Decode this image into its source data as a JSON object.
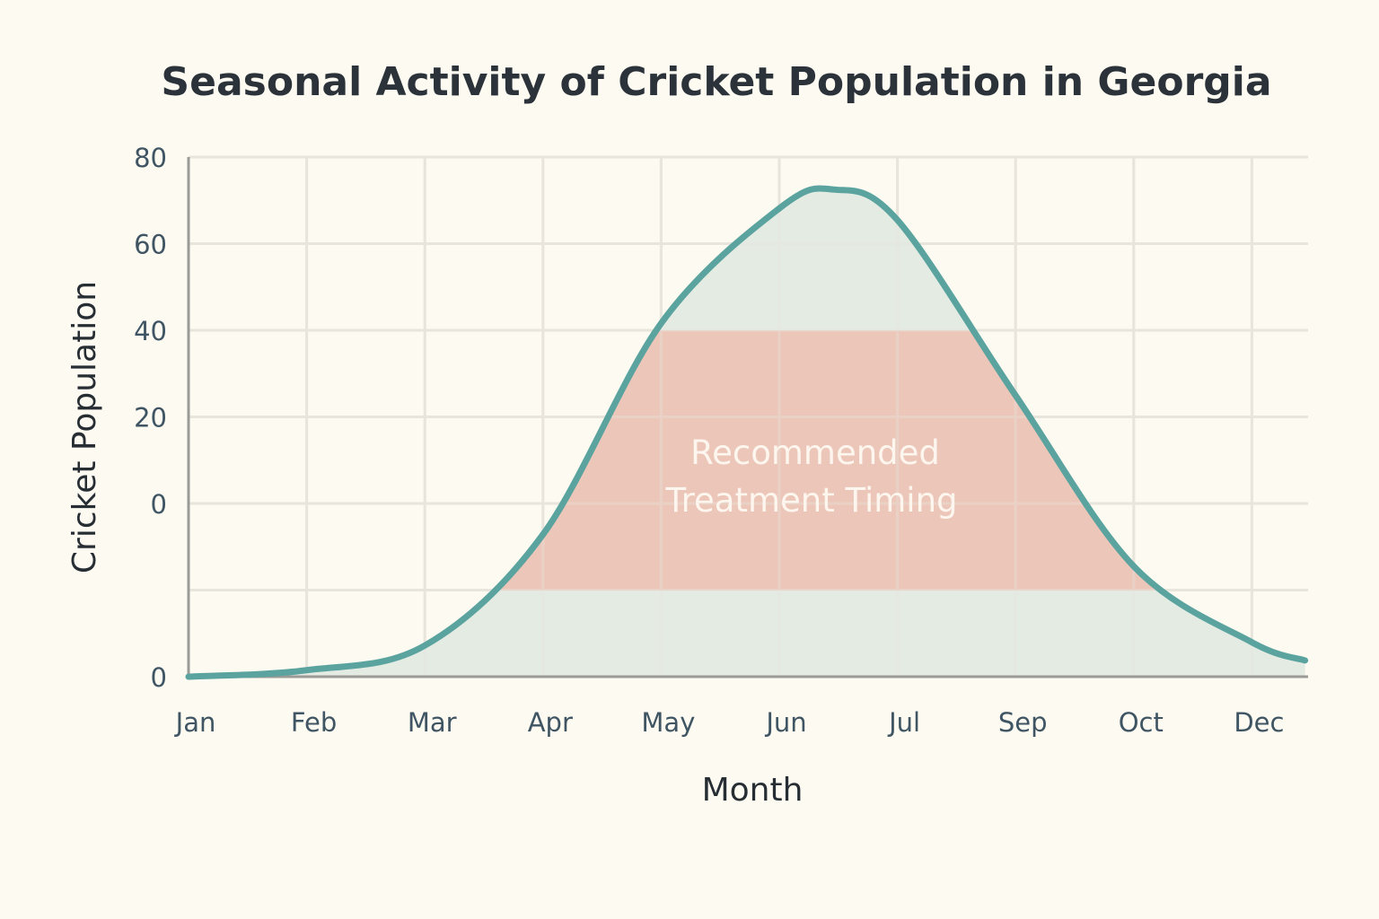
{
  "chart_data": {
    "type": "area",
    "title": "Seasonal Activity of Cricket Population in Georgia",
    "xlabel": "Month",
    "ylabel": "Cricket Population",
    "x_tick_labels": [
      "Jan",
      "Feb",
      "Mar",
      "Apr",
      "May",
      "Jun",
      "Jul",
      "Sep",
      "Oct",
      "Dec"
    ],
    "y_tick_labels": [
      "0",
      "",
      "0",
      "20",
      "40",
      "60",
      "80"
    ],
    "ylim": [
      0,
      80
    ],
    "grid": true,
    "series": [
      {
        "x": [
          0,
          1,
          2,
          3,
          4,
          5,
          5.46,
          6,
          7,
          8,
          9,
          9.45
        ],
        "values": [
          0,
          1,
          4.8,
          21.9,
          54.4,
          72.1,
          75,
          70.3,
          43.3,
          17,
          5.3,
          2.5
        ]
      }
    ],
    "band": {
      "label_line1": "Recommended",
      "label_line2": "Treatment Timing",
      "y_from": 13.3,
      "y_to": 53.3
    },
    "colors": {
      "line": "#5ba39f",
      "area": "#e4ebe3",
      "band": "#ecc7b9",
      "grid": "#e8e5dc",
      "axis": "#9a9a96"
    }
  }
}
